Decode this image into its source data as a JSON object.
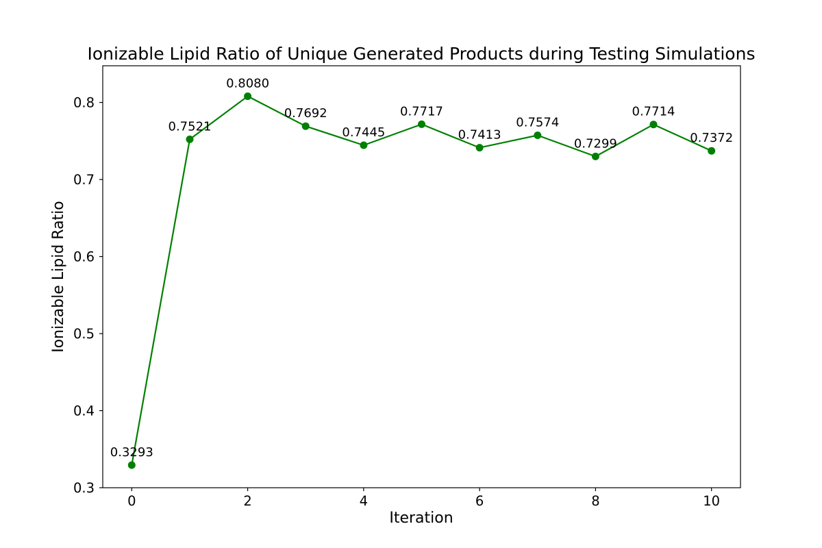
{
  "figure": {
    "background": "#ffffff",
    "axis_color": "#000000",
    "text_color": "#000000"
  },
  "chart_data": {
    "type": "line",
    "title": "Ionizable Lipid Ratio of Unique Generated Products during Testing Simulations",
    "xlabel": "Iteration",
    "ylabel": "Ionizable Lipid Ratio",
    "x": [
      0,
      1,
      2,
      3,
      4,
      5,
      6,
      7,
      8,
      9,
      10
    ],
    "series": [
      {
        "name": "Ionizable Lipid Ratio",
        "values": [
          0.3293,
          0.7521,
          0.808,
          0.7692,
          0.7445,
          0.7717,
          0.7413,
          0.7574,
          0.7299,
          0.7714,
          0.7372
        ],
        "color": "#008000",
        "marker": "circle",
        "line_style": "solid"
      }
    ],
    "point_labels": [
      "0.3293",
      "0.7521",
      "0.8080",
      "0.7692",
      "0.7445",
      "0.7717",
      "0.7413",
      "0.7574",
      "0.7299",
      "0.7714",
      "0.7372"
    ],
    "xticks": {
      "values": [
        0,
        2,
        4,
        6,
        8,
        10
      ],
      "labels": [
        "0",
        "2",
        "4",
        "6",
        "8",
        "10"
      ]
    },
    "yticks": {
      "values": [
        0.3,
        0.4,
        0.5,
        0.6,
        0.7,
        0.8
      ],
      "labels": [
        "0.3",
        "0.4",
        "0.5",
        "0.6",
        "0.7",
        "0.8"
      ]
    },
    "xlim": [
      -0.5,
      10.5
    ],
    "ylim": [
      0.3,
      0.8476
    ],
    "grid": false,
    "legend": "none"
  }
}
